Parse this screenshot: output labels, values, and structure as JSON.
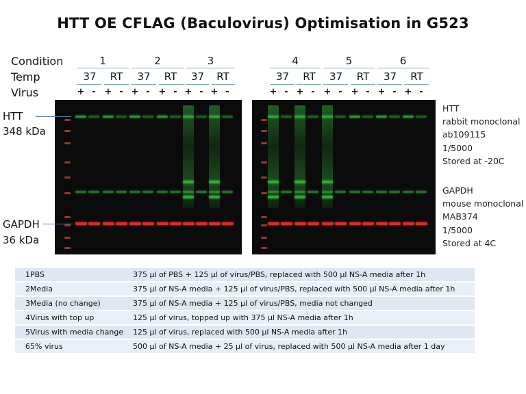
{
  "title": "HTT OE CFLAG (Baculovirus) Optimisation in G523",
  "row_labels": {
    "condition": "Condition",
    "temp": "Temp",
    "virus": "Virus"
  },
  "conditions": [
    "1",
    "2",
    "3",
    "4",
    "5",
    "6"
  ],
  "temps": [
    "37",
    "RT",
    "37",
    "RT",
    "37",
    "RT",
    "37",
    "RT",
    "37",
    "RT",
    "37",
    "RT"
  ],
  "virus_signs": [
    "+",
    "-",
    "+",
    "-",
    "+",
    "-",
    "+",
    "-",
    "+",
    "-",
    "+",
    "-",
    "+",
    "-",
    "+",
    "-",
    "+",
    "-",
    "+",
    "-",
    "+",
    "-",
    "+",
    "-"
  ],
  "proteins": {
    "htt": {
      "name": "HTT",
      "size": "348 kDa"
    },
    "gapdh": {
      "name": "GAPDH",
      "size": "36 kDa"
    }
  },
  "antibodies": {
    "htt": [
      "HTT",
      "rabbit monoclonal",
      "ab109115",
      "1/5000",
      "Stored at -20C"
    ],
    "gapdh": [
      "GAPDH",
      "mouse monoclonal",
      "MAB374",
      "1/5000",
      "Stored at 4C"
    ]
  },
  "colors": {
    "htt_band": "#39c43f",
    "gapdh_band": "#e0302b",
    "marker": "#b73e35",
    "blot_bg": "#0b0b0b",
    "header_line": "#7fa8cf"
  },
  "legend": [
    {
      "num": "1",
      "name": "PBS",
      "desc": "375 µl of PBS + 125 µl of virus/PBS, replaced with 500 µl NS-A media after 1h"
    },
    {
      "num": "2",
      "name": "Media",
      "desc": "375 µl of NS-A media + 125 µl of virus/PBS, replaced with 500 µl NS-A media after 1h"
    },
    {
      "num": "3",
      "name": "Media (no change)",
      "desc": "375 µl of NS-A media + 125 µl of virus/PBS, media not changed"
    },
    {
      "num": "4",
      "name": "Virus with top up",
      "desc": "125 µl of virus, topped up with 375 µl NS-A media after 1h"
    },
    {
      "num": "5",
      "name": "Virus with media change",
      "desc": "125 µl of virus, replaced with 500 µl NS-A media after 1h"
    },
    {
      "num": "6",
      "name": "5% virus",
      "desc": "500 µl of NS-A media + 25 µl of virus, replaced with 500 µl NS-A media after 1 day"
    }
  ]
}
